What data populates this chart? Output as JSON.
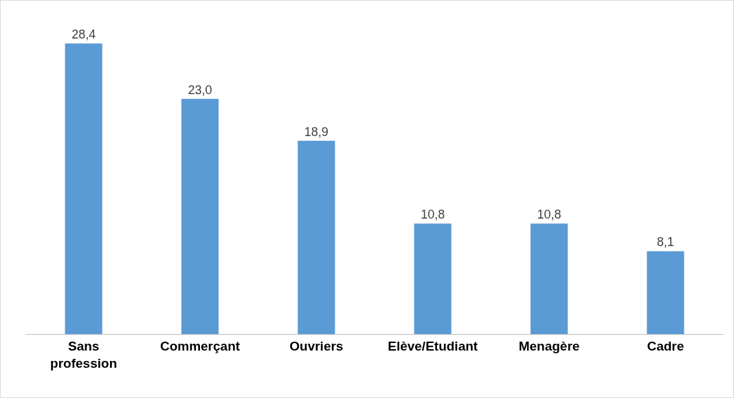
{
  "chart_data": {
    "type": "bar",
    "categories": [
      "Sans profession",
      "Commerçant",
      "Ouvriers",
      "Elève/Etudiant",
      "Menagère",
      "Cadre"
    ],
    "values": [
      28.4,
      23.0,
      18.9,
      10.8,
      10.8,
      8.1
    ],
    "color": "#5b9bd5",
    "value_labels": [
      "28,4",
      "23,0",
      "18,9",
      "10,8",
      "10,8",
      "8,1"
    ]
  }
}
